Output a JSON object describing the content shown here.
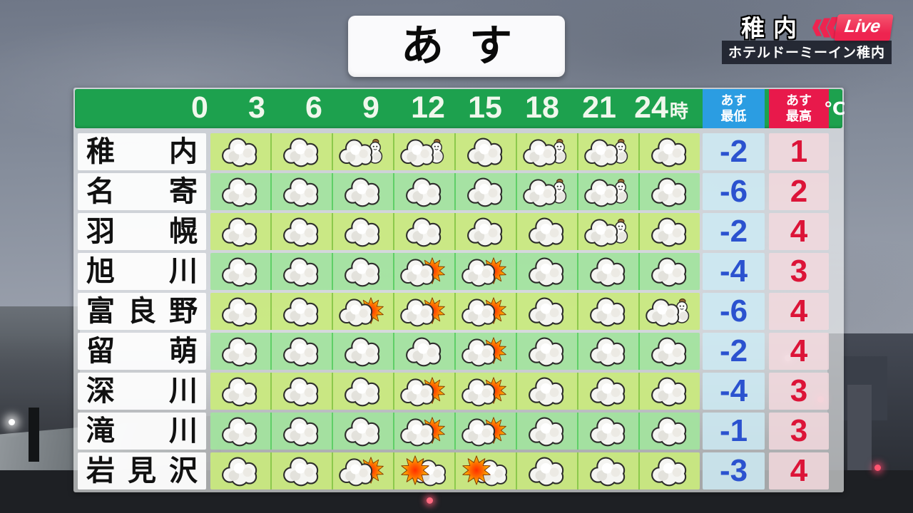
{
  "title": "あす",
  "live_overlay": {
    "location": "稚内",
    "live_label": "Live",
    "caption": "ホテルドーミーイン稚内"
  },
  "table_header": {
    "low_line1": "あす",
    "low_line2": "最低",
    "high_line1": "あす",
    "high_line2": "最高",
    "unit": "℃"
  },
  "colors": {
    "header_green": "#1da14e",
    "low_header_blue": "#2b9de2",
    "high_header_red": "#e8194b",
    "low_value_blue": "#2b52cf",
    "high_value_red": "#dc1438",
    "live_red": "#ee2450",
    "row_bg_odd": "rgba(201,233,126,0.93)",
    "row_bg_even": "rgba(163,227,158,0.93)",
    "low_cell_bg": "rgba(205,234,243,0.85)",
    "high_cell_bg": "rgba(242,216,221,0.85)"
  },
  "chart_data": {
    "type": "table",
    "title": "あす (tomorrow) 3-hourly weather and temperatures for Hokkaido cities",
    "time_axis": {
      "labels": [
        "0",
        "3",
        "6",
        "9",
        "12",
        "15",
        "18",
        "21",
        "24"
      ],
      "unit": "時"
    },
    "columns": [
      "city",
      "weather icons for 8 three-hour blocks 0-24時",
      "あす最低 (℃)",
      "あす最高 (℃)"
    ],
    "icon_legend": {
      "cloud": "くもり (cloudy)",
      "cloud-snowman": "くもり一時雪 (cloudy with snow)",
      "cloud-sun": "くもり時々晴れ (cloudy with sunny spells)",
      "sun-cloud": "晴れ時々くもり (sunny with clouds)"
    },
    "rows": [
      {
        "city": "稚内",
        "icons": [
          "cloud",
          "cloud",
          "cloud-snowman",
          "cloud-snowman",
          "cloud",
          "cloud-snowman",
          "cloud-snowman",
          "cloud"
        ],
        "low": -2,
        "high": 1
      },
      {
        "city": "名寄",
        "icons": [
          "cloud",
          "cloud",
          "cloud",
          "cloud",
          "cloud",
          "cloud-snowman",
          "cloud-snowman",
          "cloud"
        ],
        "low": -6,
        "high": 2
      },
      {
        "city": "羽幌",
        "icons": [
          "cloud",
          "cloud",
          "cloud",
          "cloud",
          "cloud",
          "cloud",
          "cloud-snowman",
          "cloud"
        ],
        "low": -2,
        "high": 4
      },
      {
        "city": "旭川",
        "icons": [
          "cloud",
          "cloud",
          "cloud",
          "cloud-sun",
          "cloud-sun",
          "cloud",
          "cloud",
          "cloud"
        ],
        "low": -4,
        "high": 3
      },
      {
        "city": "富良野",
        "icons": [
          "cloud",
          "cloud",
          "cloud-sun",
          "cloud-sun",
          "cloud-sun",
          "cloud",
          "cloud",
          "cloud-snowman"
        ],
        "low": -6,
        "high": 4
      },
      {
        "city": "留萌",
        "icons": [
          "cloud",
          "cloud",
          "cloud",
          "cloud",
          "cloud-sun",
          "cloud",
          "cloud",
          "cloud"
        ],
        "low": -2,
        "high": 4
      },
      {
        "city": "深川",
        "icons": [
          "cloud",
          "cloud",
          "cloud",
          "cloud-sun",
          "cloud-sun",
          "cloud",
          "cloud",
          "cloud"
        ],
        "low": -4,
        "high": 3
      },
      {
        "city": "滝川",
        "icons": [
          "cloud",
          "cloud",
          "cloud",
          "cloud-sun",
          "cloud-sun",
          "cloud",
          "cloud",
          "cloud"
        ],
        "low": -1,
        "high": 3
      },
      {
        "city": "岩見沢",
        "icons": [
          "cloud",
          "cloud",
          "cloud-sun",
          "sun-cloud",
          "sun-cloud",
          "cloud",
          "cloud",
          "cloud"
        ],
        "low": -3,
        "high": 4
      }
    ]
  }
}
